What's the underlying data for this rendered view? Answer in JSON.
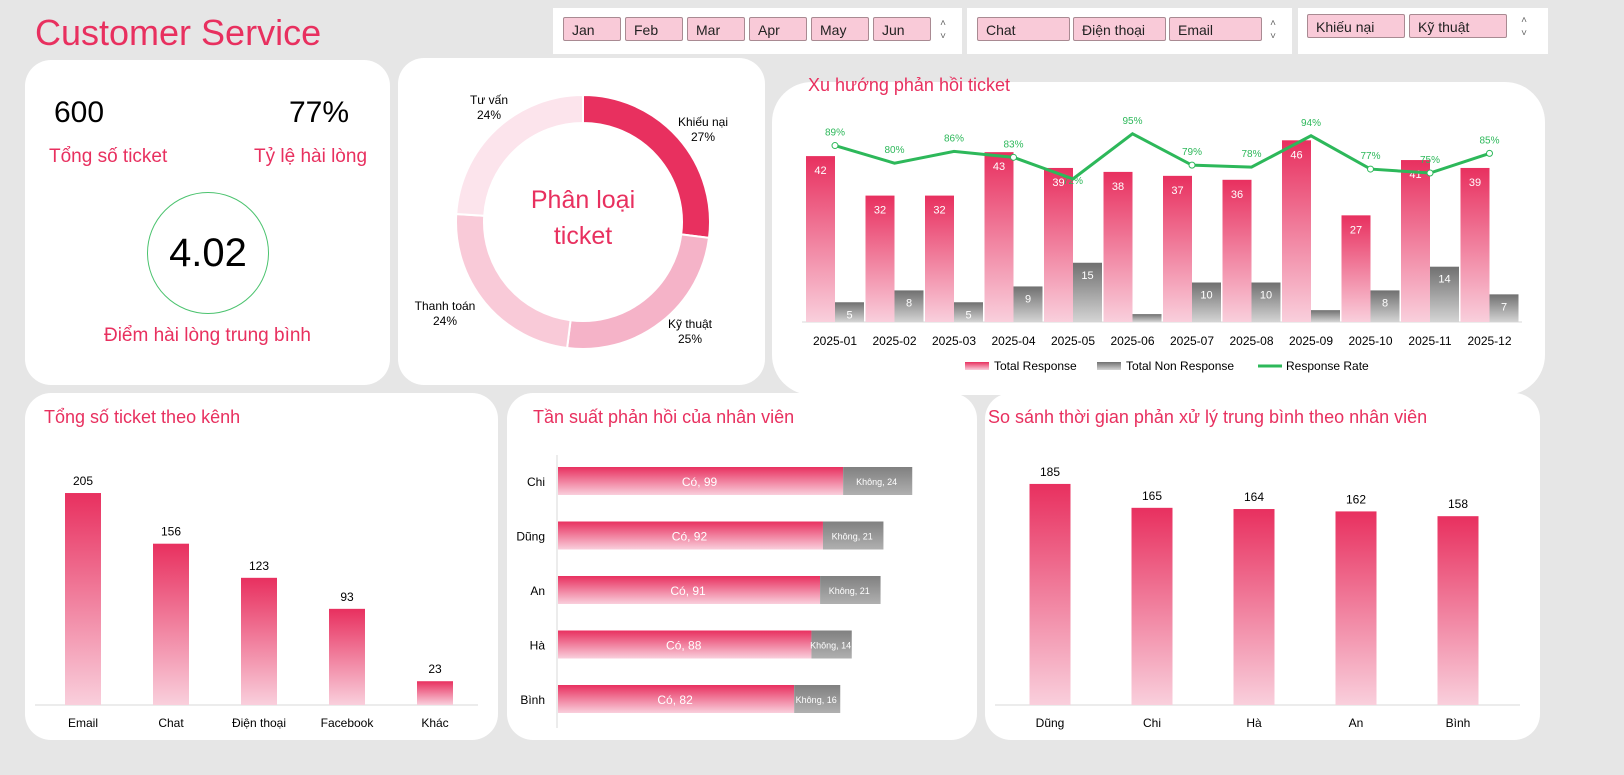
{
  "header": {
    "title": "Customer Service"
  },
  "slicers": {
    "months": [
      "Jan",
      "Feb",
      "Mar",
      "Apr",
      "May",
      "Jun"
    ],
    "channels": [
      "Chat",
      "Điện thoại",
      "Email"
    ],
    "categories": [
      "Khiếu nại",
      "Kỹ thuật"
    ]
  },
  "kpi": {
    "total_tickets": "600",
    "total_tickets_label": "Tổng số ticket",
    "satisfaction_rate": "77%",
    "satisfaction_rate_label": "Tỷ lệ hài lòng",
    "avg_score": "4.02",
    "avg_score_label": "Điểm hài lòng trung bình"
  },
  "colors": {
    "accent": "#e8305f",
    "gray": "#808080",
    "green": "#2db85a"
  },
  "chart_data": [
    {
      "type": "pie",
      "title": "Phân loại ticket",
      "donut": true,
      "categories": [
        "Khiếu nại",
        "Kỹ thuật",
        "Thanh toán",
        "Tư vấn"
      ],
      "values": [
        27,
        25,
        24,
        24
      ],
      "labels": [
        "27%",
        "25%",
        "24%",
        "24%"
      ]
    },
    {
      "type": "bar",
      "title": "Xu hướng phản hồi ticket",
      "categories": [
        "2025-01",
        "2025-02",
        "2025-03",
        "2025-04",
        "2025-05",
        "2025-06",
        "2025-07",
        "2025-08",
        "2025-09",
        "2025-10",
        "2025-11",
        "2025-12"
      ],
      "series": [
        {
          "name": "Total Response",
          "values": [
            42,
            32,
            32,
            43,
            39,
            38,
            37,
            36,
            46,
            27,
            41,
            39
          ]
        },
        {
          "name": "Total Non Response",
          "values": [
            5,
            8,
            5,
            9,
            15,
            2,
            10,
            10,
            3,
            8,
            14,
            7
          ]
        },
        {
          "name": "Response Rate",
          "type": "line",
          "values": [
            89,
            80,
            86,
            83,
            72,
            95,
            79,
            78,
            94,
            77,
            75,
            85
          ],
          "labels": [
            "89%",
            "80%",
            "86%",
            "83%",
            "72%",
            "95%",
            "79%",
            "78%",
            "94%",
            "77%",
            "75%",
            "85%"
          ]
        }
      ],
      "legend": "bottom"
    },
    {
      "type": "bar",
      "title": "Tổng số ticket theo kênh",
      "categories": [
        "Email",
        "Chat",
        "Điện thoại",
        "Facebook",
        "Khác"
      ],
      "values": [
        205,
        156,
        123,
        93,
        23
      ]
    },
    {
      "type": "bar",
      "orientation": "horizontal",
      "stacked": true,
      "title": "Tần suất phản hồi của nhân viên",
      "categories": [
        "Chi",
        "Dũng",
        "An",
        "Hà",
        "Bình"
      ],
      "series": [
        {
          "name": "Có",
          "values": [
            99,
            92,
            91,
            88,
            82
          ]
        },
        {
          "name": "Không",
          "values": [
            24,
            21,
            21,
            14,
            16
          ]
        }
      ]
    },
    {
      "type": "bar",
      "title": "So sánh thời gian phản xử lý trung bình theo nhân viên",
      "categories": [
        "Dũng",
        "Chi",
        "Hà",
        "An",
        "Bình"
      ],
      "values": [
        185,
        165,
        164,
        162,
        158
      ]
    }
  ]
}
